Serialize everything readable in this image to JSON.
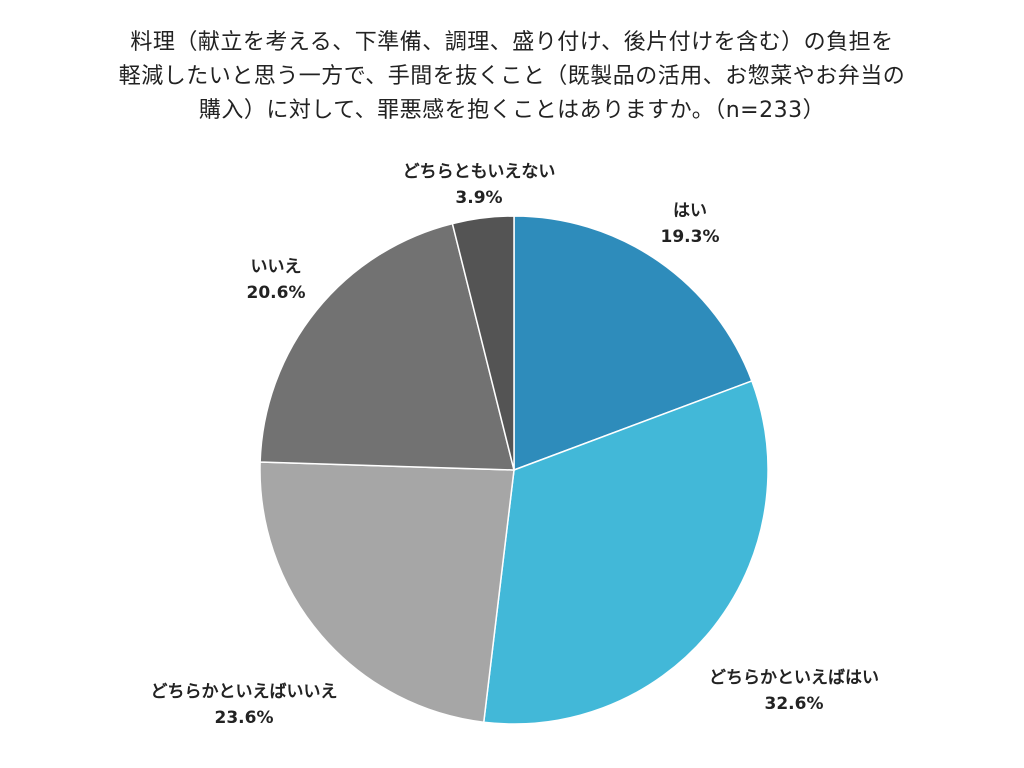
{
  "title_lines": [
    "料理（献立を考える、下準備、調理、盛り付け、後片付けを含む）の負担を",
    "軽減したいと思う一方で、手間を抜くこと（既製品の活用、お惣菜やお弁当の",
    "購入）に対して、罪悪感を抱くことはありますか。（n=233）"
  ],
  "chart_data": {
    "type": "pie",
    "title": "料理（献立を考える、下準備、調理、盛り付け、後片付けを含む）の負担を軽減したいと思う一方で、手間を抜くこと（既製品の活用、お惣菜やお弁当の購入）に対して、罪悪感を抱くことはありますか。（n=233）",
    "start_angle_deg": 0,
    "direction": "clockwise",
    "legend": "none",
    "slices": [
      {
        "label": "はい",
        "value": 19.3,
        "value_label": "19.3%",
        "color": "#2e8cbb"
      },
      {
        "label": "どちらかといえばはい",
        "value": 32.6,
        "value_label": "32.6%",
        "color": "#42b8d8"
      },
      {
        "label": "どちらかといえばいいえ",
        "value": 23.6,
        "value_label": "23.6%",
        "color": "#a6a6a6"
      },
      {
        "label": "いいえ",
        "value": 20.6,
        "value_label": "20.6%",
        "color": "#727272"
      },
      {
        "label": "どちらともいえない",
        "value": 3.9,
        "value_label": "3.9%",
        "color": "#545454"
      }
    ]
  }
}
